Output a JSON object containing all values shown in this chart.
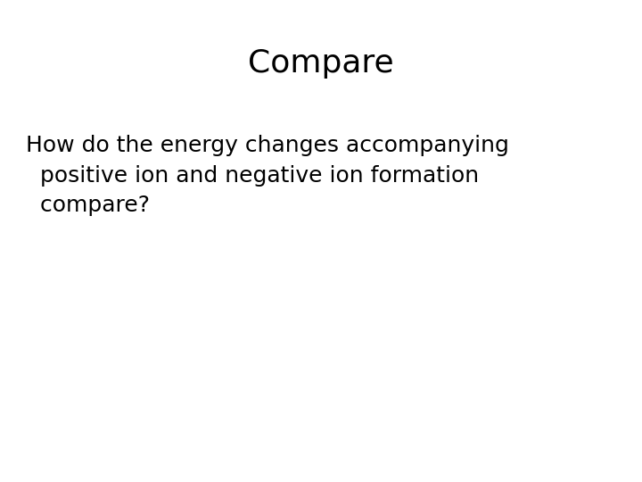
{
  "title": "Compare",
  "title_fontsize": 26,
  "title_fontweight": "normal",
  "title_fontfamily": "DejaVu Sans",
  "body_line1": "How do the energy changes accompanying",
  "body_line2": "  positive ion and negative ion formation",
  "body_line3": "  compare?",
  "body_fontsize": 18,
  "body_fontweight": "normal",
  "body_fontfamily": "DejaVu Sans",
  "text_color": "#000000",
  "background_color": "#ffffff",
  "fig_width": 7.2,
  "fig_height": 5.4,
  "dpi": 100
}
